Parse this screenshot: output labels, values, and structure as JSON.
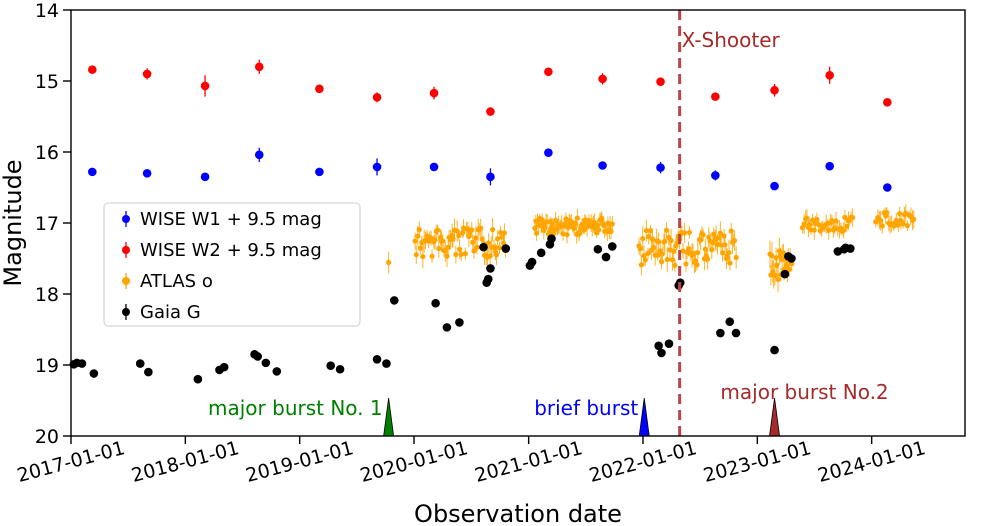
{
  "chart_data": {
    "type": "scatter",
    "title": "",
    "xlabel": "Observation date",
    "ylabel": "Magnitude",
    "xlim": [
      "2017-01-01",
      "2024-10-25"
    ],
    "ylim": [
      20,
      14
    ],
    "y_inverted": true,
    "x_tick_labels": [
      "2017-01-01",
      "2018-01-01",
      "2019-01-01",
      "2020-01-01",
      "2021-01-01",
      "2022-01-01",
      "2023-01-01",
      "2024-01-01"
    ],
    "y_tick_labels": [
      "14",
      "15",
      "16",
      "17",
      "18",
      "19",
      "20"
    ],
    "grid": false,
    "legend_position": "center-left",
    "series": [
      {
        "name": "WISE W1 + 9.5 mag",
        "color": "#0000ff",
        "points": [
          {
            "x": "2017-03-10",
            "y": 16.28,
            "err": 0.05
          },
          {
            "x": "2017-09-01",
            "y": 16.3,
            "err": 0.05
          },
          {
            "x": "2018-03-05",
            "y": 16.35,
            "err": 0.05
          },
          {
            "x": "2018-08-25",
            "y": 16.04,
            "err": 0.1
          },
          {
            "x": "2019-03-05",
            "y": 16.28,
            "err": 0.05
          },
          {
            "x": "2019-09-05",
            "y": 16.21,
            "err": 0.12
          },
          {
            "x": "2020-03-05",
            "y": 16.21,
            "err": 0.05
          },
          {
            "x": "2020-09-01",
            "y": 16.35,
            "err": 0.12
          },
          {
            "x": "2021-03-05",
            "y": 16.01,
            "err": 0.05
          },
          {
            "x": "2021-08-25",
            "y": 16.19,
            "err": 0.05
          },
          {
            "x": "2022-02-26",
            "y": 16.22,
            "err": 0.08
          },
          {
            "x": "2022-08-20",
            "y": 16.33,
            "err": 0.07
          },
          {
            "x": "2023-02-25",
            "y": 16.48,
            "err": 0.05
          },
          {
            "x": "2023-08-20",
            "y": 16.2,
            "err": 0.05
          },
          {
            "x": "2024-02-20",
            "y": 16.5,
            "err": 0.05
          }
        ]
      },
      {
        "name": "WISE W2 + 9.5 mag",
        "color": "#ff0000",
        "points": [
          {
            "x": "2017-03-10",
            "y": 14.84,
            "err": 0.05
          },
          {
            "x": "2017-09-01",
            "y": 14.9,
            "err": 0.08
          },
          {
            "x": "2018-03-05",
            "y": 15.07,
            "err": 0.15
          },
          {
            "x": "2018-08-25",
            "y": 14.8,
            "err": 0.1
          },
          {
            "x": "2019-03-05",
            "y": 15.11,
            "err": 0.05
          },
          {
            "x": "2019-09-05",
            "y": 15.23,
            "err": 0.07
          },
          {
            "x": "2020-03-05",
            "y": 15.17,
            "err": 0.09
          },
          {
            "x": "2020-09-01",
            "y": 15.43,
            "err": 0.05
          },
          {
            "x": "2021-03-05",
            "y": 14.87,
            "err": 0.05
          },
          {
            "x": "2021-08-25",
            "y": 14.97,
            "err": 0.08
          },
          {
            "x": "2022-02-26",
            "y": 15.01,
            "err": 0.05
          },
          {
            "x": "2022-08-20",
            "y": 15.22,
            "err": 0.05
          },
          {
            "x": "2023-02-25",
            "y": 15.13,
            "err": 0.09
          },
          {
            "x": "2023-08-20",
            "y": 14.92,
            "err": 0.12
          },
          {
            "x": "2024-02-20",
            "y": 15.3,
            "err": 0.05
          }
        ]
      },
      {
        "name": "ATLAS o",
        "color": "#ffa500",
        "segments": [
          {
            "start": "2019-10-12",
            "end": "2019-10-12",
            "n": 1,
            "mean": 17.55,
            "amp": 0.05,
            "err": 0.22
          },
          {
            "start": "2020-01-05",
            "end": "2020-10-20",
            "n": 70,
            "mean": 17.28,
            "amp": 0.22,
            "err": 0.12
          },
          {
            "start": "2021-01-20",
            "end": "2021-09-25",
            "n": 75,
            "mean": 17.05,
            "amp": 0.12,
            "err": 0.1
          },
          {
            "start": "2021-12-20",
            "end": "2022-10-25",
            "n": 80,
            "mean": 17.35,
            "amp": 0.25,
            "err": 0.13
          },
          {
            "start": "2023-02-10",
            "end": "2023-04-20",
            "n": 22,
            "mean": 17.6,
            "amp": 0.22,
            "err": 0.15
          },
          {
            "start": "2023-05-25",
            "end": "2023-11-01",
            "n": 35,
            "mean": 17.02,
            "amp": 0.1,
            "err": 0.1
          },
          {
            "start": "2024-01-15",
            "end": "2024-05-15",
            "n": 25,
            "mean": 16.95,
            "amp": 0.1,
            "err": 0.1
          }
        ]
      },
      {
        "name": "Gaia G",
        "color": "#000000",
        "points": [
          {
            "x": "2017-01-10",
            "y": 18.99
          },
          {
            "x": "2017-01-20",
            "y": 18.97
          },
          {
            "x": "2017-02-05",
            "y": 18.98
          },
          {
            "x": "2017-03-15",
            "y": 19.12
          },
          {
            "x": "2017-08-10",
            "y": 18.98
          },
          {
            "x": "2017-09-05",
            "y": 19.1
          },
          {
            "x": "2018-02-10",
            "y": 19.2
          },
          {
            "x": "2018-04-20",
            "y": 19.07
          },
          {
            "x": "2018-05-05",
            "y": 19.03
          },
          {
            "x": "2018-08-10",
            "y": 18.85
          },
          {
            "x": "2018-08-20",
            "y": 18.88
          },
          {
            "x": "2018-09-15",
            "y": 18.97
          },
          {
            "x": "2018-10-20",
            "y": 19.09
          },
          {
            "x": "2019-04-10",
            "y": 19.01
          },
          {
            "x": "2019-05-10",
            "y": 19.06
          },
          {
            "x": "2019-09-05",
            "y": 18.92
          },
          {
            "x": "2019-10-05",
            "y": 18.98
          },
          {
            "x": "2019-10-30",
            "y": 18.09
          },
          {
            "x": "2020-03-10",
            "y": 18.13
          },
          {
            "x": "2020-04-15",
            "y": 18.47
          },
          {
            "x": "2020-05-25",
            "y": 18.4
          },
          {
            "x": "2020-08-10",
            "y": 17.34
          },
          {
            "x": "2020-09-01",
            "y": 17.64
          },
          {
            "x": "2020-10-20",
            "y": 17.36
          },
          {
            "x": "2020-08-20",
            "y": 17.84
          },
          {
            "x": "2020-08-25",
            "y": 17.79
          },
          {
            "x": "2021-01-05",
            "y": 17.6
          },
          {
            "x": "2021-01-12",
            "y": 17.55
          },
          {
            "x": "2021-02-10",
            "y": 17.42
          },
          {
            "x": "2021-03-10",
            "y": 17.3
          },
          {
            "x": "2021-03-15",
            "y": 17.22
          },
          {
            "x": "2021-08-10",
            "y": 17.37
          },
          {
            "x": "2021-09-05",
            "y": 17.48
          },
          {
            "x": "2021-09-25",
            "y": 17.33
          },
          {
            "x": "2022-02-20",
            "y": 18.73
          },
          {
            "x": "2022-03-01",
            "y": 18.83
          },
          {
            "x": "2022-03-25",
            "y": 18.7
          },
          {
            "x": "2022-04-25",
            "y": 17.88
          },
          {
            "x": "2022-04-30",
            "y": 17.84
          },
          {
            "x": "2022-09-05",
            "y": 18.55
          },
          {
            "x": "2022-10-05",
            "y": 18.39
          },
          {
            "x": "2022-10-25",
            "y": 18.55
          },
          {
            "x": "2023-02-25",
            "y": 18.79
          },
          {
            "x": "2023-03-30",
            "y": 17.72
          },
          {
            "x": "2023-04-10",
            "y": 17.47
          },
          {
            "x": "2023-04-20",
            "y": 17.5
          },
          {
            "x": "2023-09-15",
            "y": 17.4
          },
          {
            "x": "2023-10-05",
            "y": 17.37
          },
          {
            "x": "2023-10-10",
            "y": 17.35
          },
          {
            "x": "2023-10-25",
            "y": 17.36
          }
        ]
      }
    ],
    "reference_line": {
      "label": "X-Shooter",
      "x": "2022-04-28",
      "color": "#bb4545",
      "style": "dashed"
    },
    "annotations": [
      {
        "label": "major burst No. 1",
        "x": "2019-10-12",
        "color": "#008000"
      },
      {
        "label": "brief burst",
        "x": "2022-01-05",
        "color": "#0000ff"
      },
      {
        "label": "major burst No.2",
        "x": "2023-02-25",
        "color": "#a52a2a"
      }
    ]
  }
}
